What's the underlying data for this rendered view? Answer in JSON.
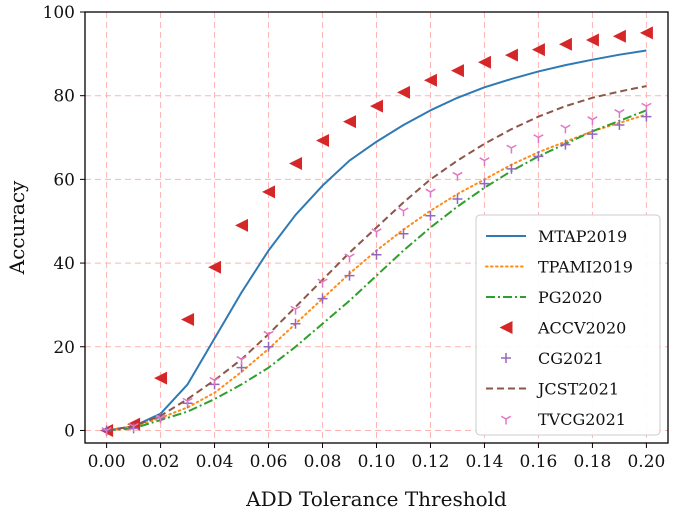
{
  "chart_data": {
    "type": "line",
    "title": "",
    "xlabel": "ADD Tolerance Threshold",
    "ylabel": "Accuracy",
    "xlim": [
      -0.008,
      0.208
    ],
    "ylim": [
      -3,
      100
    ],
    "xticks": [
      "0.00",
      "0.02",
      "0.04",
      "0.06",
      "0.08",
      "0.10",
      "0.12",
      "0.14",
      "0.16",
      "0.18",
      "0.20"
    ],
    "xtick_values": [
      0,
      0.02,
      0.04,
      0.06,
      0.08,
      0.1,
      0.12,
      0.14,
      0.16,
      0.18,
      0.2
    ],
    "yticks": [
      "0",
      "20",
      "40",
      "60",
      "80",
      "100"
    ],
    "ytick_values": [
      0,
      20,
      40,
      60,
      80,
      100
    ],
    "grid": true,
    "grid_color": "#ffb3b3",
    "legend_position": "lower-right",
    "x": [
      0,
      0.01,
      0.02,
      0.03,
      0.04,
      0.05,
      0.06,
      0.07,
      0.08,
      0.09,
      0.1,
      0.11,
      0.12,
      0.13,
      0.14,
      0.15,
      0.16,
      0.17,
      0.18,
      0.19,
      0.2
    ],
    "series": [
      {
        "name": "MTAP2019",
        "style": "solid",
        "color": "#2f79b5",
        "values": [
          0,
          1,
          4,
          11,
          22,
          33,
          43,
          51.5,
          58.5,
          64.5,
          69,
          73,
          76.5,
          79.5,
          82,
          84,
          85.8,
          87.3,
          88.6,
          89.8,
          90.8
        ]
      },
      {
        "name": "TPAMI2019",
        "style": "dotted",
        "color": "#ff8c1a",
        "values": [
          0,
          1,
          3,
          5.5,
          9,
          14,
          19.5,
          25.5,
          31.5,
          37.5,
          43,
          48,
          52.5,
          56.5,
          60,
          63.5,
          66.5,
          69,
          71.5,
          73.5,
          75.5
        ]
      },
      {
        "name": "PG2020",
        "style": "dashdot",
        "color": "#2ca02c",
        "values": [
          0,
          0.5,
          2.5,
          4.5,
          7.5,
          11,
          15,
          20,
          25.5,
          31,
          37,
          43,
          48.5,
          53.5,
          58,
          62,
          65.5,
          68.5,
          71.5,
          74,
          76.5
        ]
      },
      {
        "name": "ACCV2020",
        "style": "marker-triangle-left",
        "color": "#d62728",
        "values": [
          0,
          1.5,
          12.5,
          26.5,
          39,
          49,
          57,
          63.8,
          69.3,
          73.8,
          77.5,
          80.8,
          83.7,
          86,
          88,
          89.7,
          91,
          92.3,
          93.3,
          94.2,
          95
        ]
      },
      {
        "name": "CG2021",
        "style": "marker-plus",
        "color": "#9467bd",
        "values": [
          0,
          0.5,
          3,
          6.5,
          11,
          15,
          20,
          25.5,
          31.5,
          37,
          42,
          47,
          51.3,
          55.3,
          59,
          62.5,
          65.5,
          68.3,
          70.8,
          73,
          75
        ]
      },
      {
        "name": "JCST2021",
        "style": "dashed",
        "color": "#8c564b",
        "values": [
          0,
          1,
          3.5,
          7.5,
          12,
          17,
          23,
          29.5,
          36,
          42.5,
          48.5,
          54.5,
          60,
          64.5,
          68.5,
          72,
          75,
          77.5,
          79.5,
          81,
          82.3
        ]
      },
      {
        "name": "TVCG2021",
        "style": "marker-tri-down",
        "color": "#e377c2",
        "values": [
          0,
          1,
          3,
          7,
          12,
          17,
          23,
          29,
          35.5,
          41.5,
          47.5,
          52.5,
          57,
          61,
          64.5,
          67.5,
          70,
          72.3,
          74.3,
          76,
          77.5
        ]
      }
    ]
  }
}
